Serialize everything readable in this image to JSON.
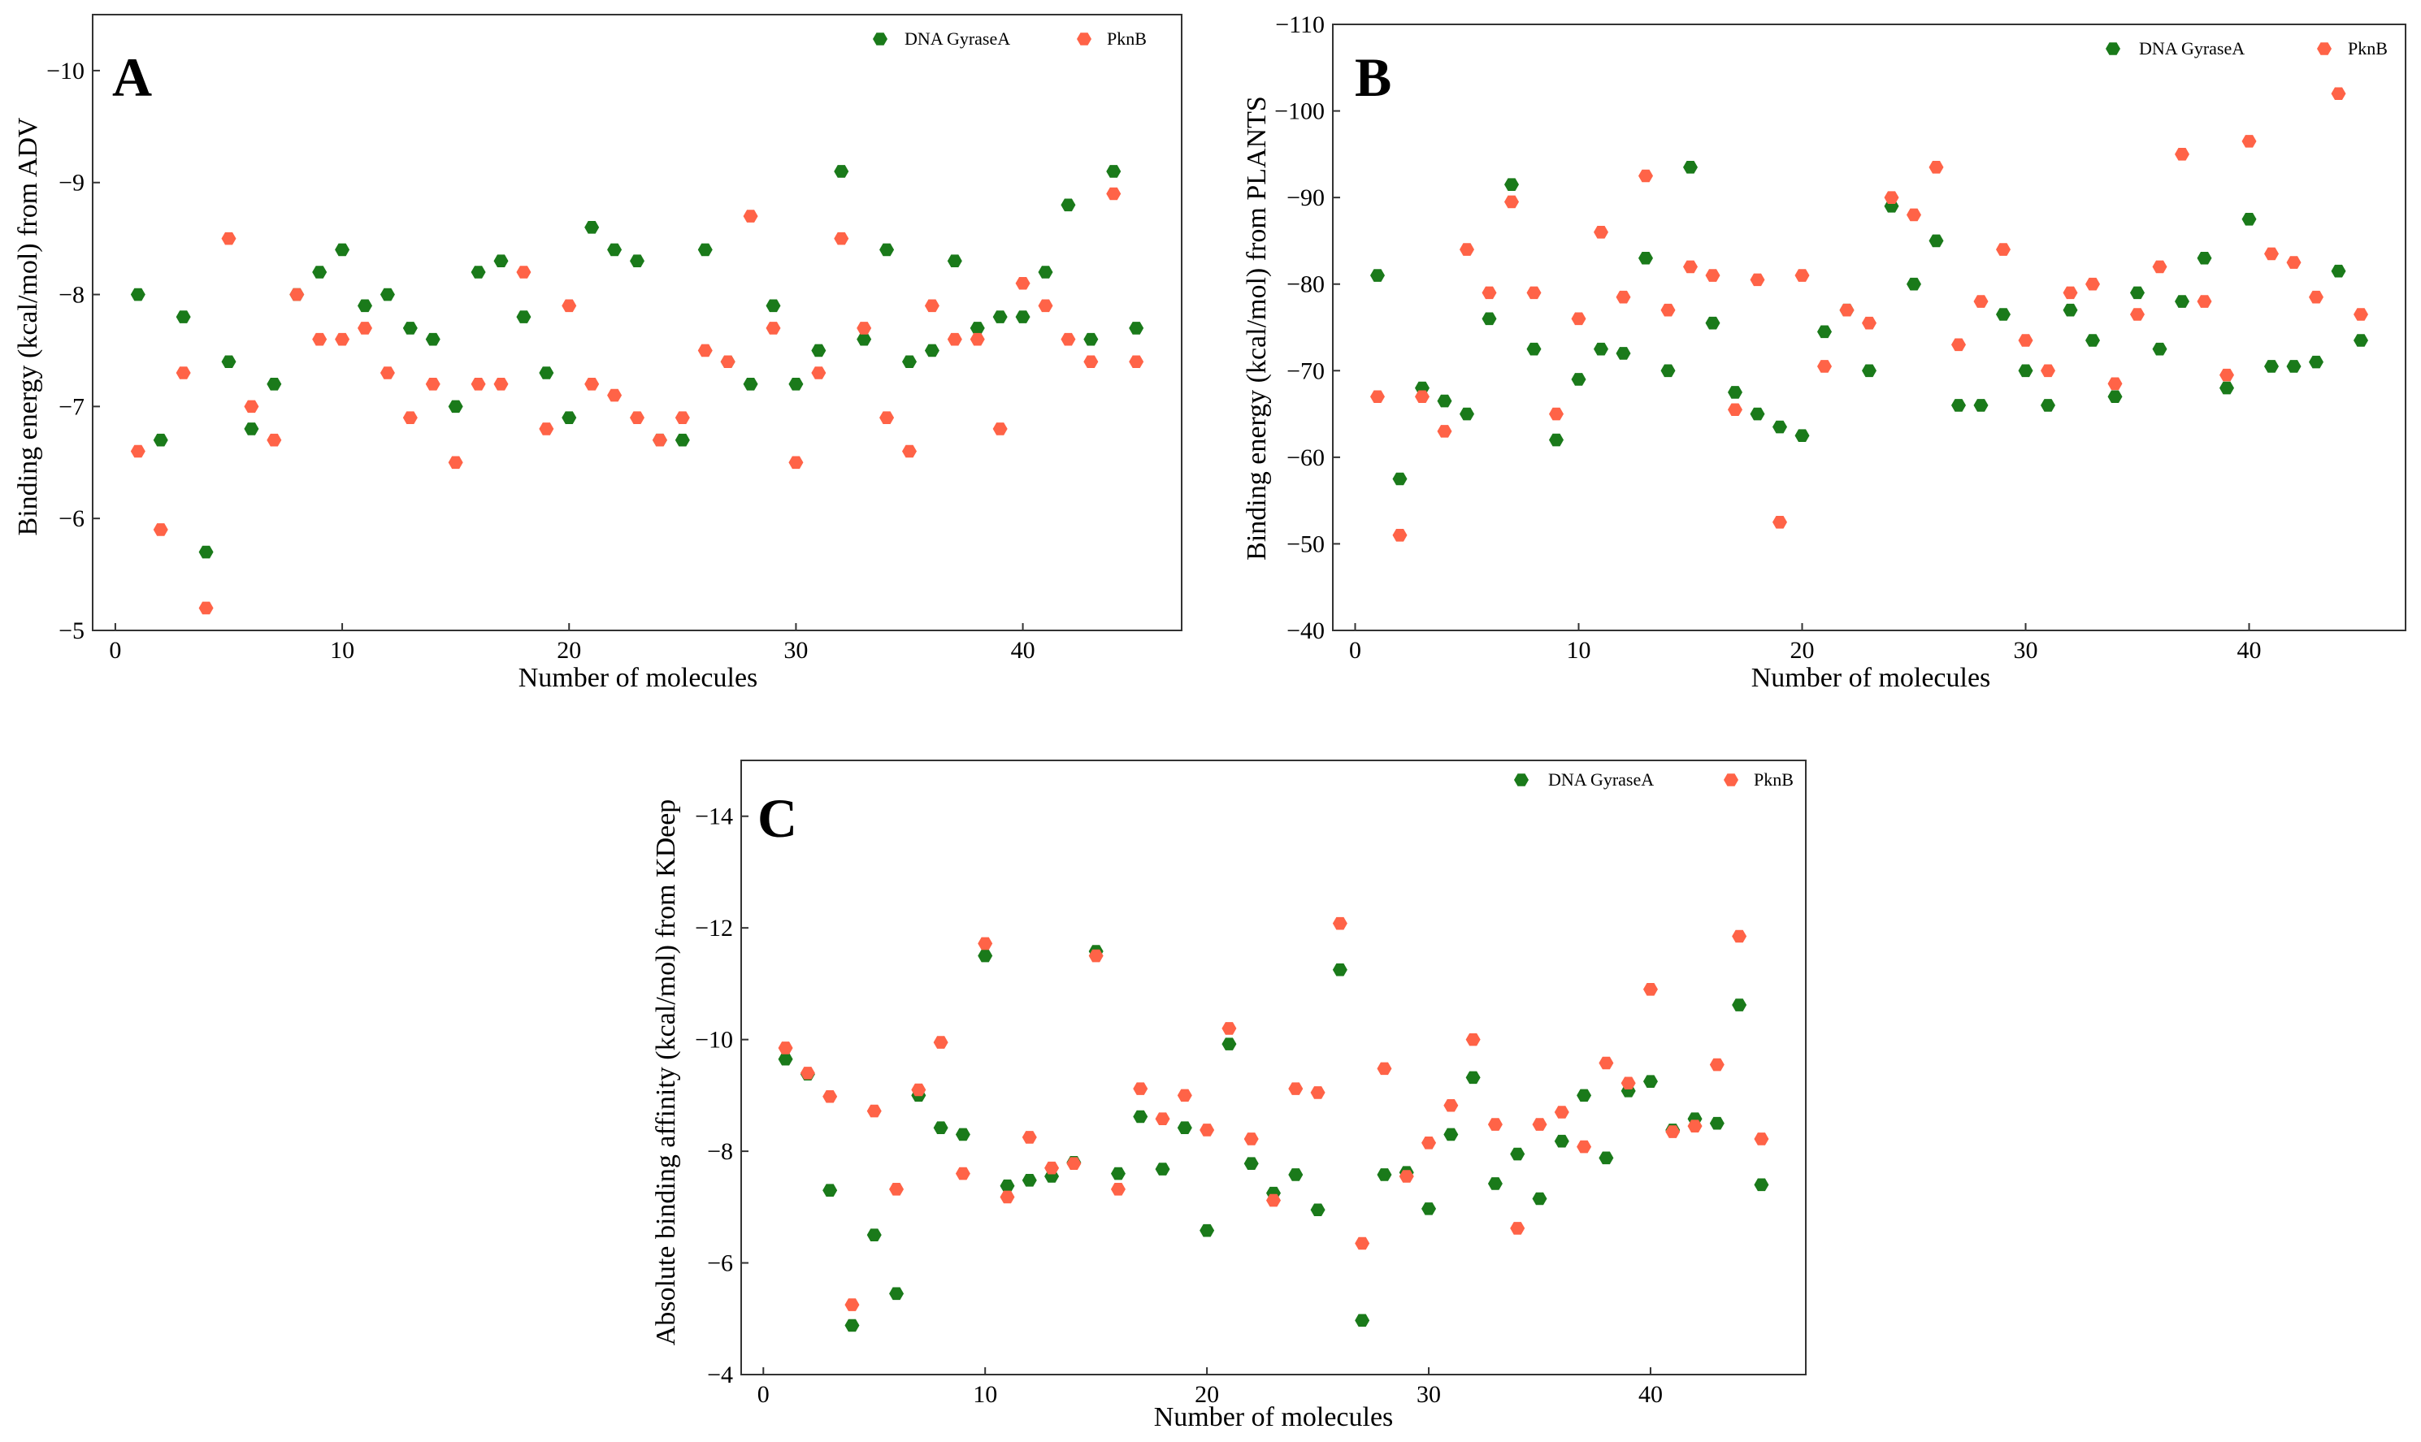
{
  "colors": {
    "series_green": "#1a7a1a",
    "series_orange": "#ff6347"
  },
  "chart_data": [
    {
      "type": "scatter",
      "panel_label": "A",
      "xlabel": "Number of molecules",
      "ylabel": "Binding energy (kcal/mol) from ADV",
      "xlim": [
        -1,
        47
      ],
      "ylim": [
        -5,
        -10.5
      ],
      "y_inverted": true,
      "xticks": [
        0,
        10,
        20,
        30,
        40
      ],
      "yticks": [
        -10,
        -9,
        -8,
        -7,
        -6,
        -5
      ],
      "tick_labels_x": [
        "0",
        "10",
        "20",
        "30",
        "40"
      ],
      "tick_labels_y": [
        "−10",
        "−9",
        "−8",
        "−7",
        "−6",
        "−5"
      ],
      "grid": false,
      "legend_position": "top-right",
      "series": [
        {
          "name": "DNA GyraseA",
          "color": "#1a7a1a",
          "x": [
            1,
            2,
            3,
            4,
            5,
            6,
            7,
            8,
            9,
            10,
            11,
            12,
            13,
            14,
            15,
            16,
            17,
            18,
            19,
            20,
            21,
            22,
            23,
            24,
            25,
            26,
            27,
            28,
            29,
            30,
            31,
            32,
            33,
            34,
            35,
            36,
            37,
            38,
            39,
            40,
            41,
            42,
            43,
            44,
            45
          ],
          "y": [
            -8.0,
            -6.7,
            -7.8,
            -5.7,
            -7.4,
            -6.8,
            -7.2,
            -8.0,
            -8.2,
            -8.4,
            -7.9,
            -8.0,
            -7.7,
            -7.6,
            -7.0,
            -8.2,
            -8.3,
            -7.8,
            -7.3,
            -6.9,
            -8.6,
            -8.4,
            -8.3,
            -6.7,
            -6.7,
            -8.4,
            -7.4,
            -7.2,
            -7.9,
            -7.2,
            -7.5,
            -9.1,
            -7.6,
            -8.4,
            -7.4,
            -7.5,
            -8.3,
            -7.7,
            -7.8,
            -7.8,
            -8.2,
            -8.8,
            -7.6,
            -9.1,
            -7.7
          ]
        },
        {
          "name": "PknB",
          "color": "#ff6347",
          "x": [
            1,
            2,
            3,
            4,
            5,
            6,
            7,
            8,
            9,
            10,
            11,
            12,
            13,
            14,
            15,
            16,
            17,
            18,
            19,
            20,
            21,
            22,
            23,
            24,
            25,
            26,
            27,
            28,
            29,
            30,
            31,
            32,
            33,
            34,
            35,
            36,
            37,
            38,
            39,
            40,
            41,
            42,
            43,
            44,
            45
          ],
          "y": [
            -6.6,
            -5.9,
            -7.3,
            -5.2,
            -8.5,
            -7.0,
            -6.7,
            -8.0,
            -7.6,
            -7.6,
            -7.7,
            -7.3,
            -6.9,
            -7.2,
            -6.5,
            -7.2,
            -7.2,
            -8.2,
            -6.8,
            -7.9,
            -7.2,
            -7.1,
            -6.9,
            -6.7,
            -6.9,
            -7.5,
            -7.4,
            -8.7,
            -7.7,
            -6.5,
            -7.3,
            -8.5,
            -7.7,
            -6.9,
            -6.6,
            -7.9,
            -7.6,
            -7.6,
            -6.8,
            -8.1,
            -7.9,
            -7.6,
            -7.4,
            -8.9,
            -7.4
          ]
        }
      ]
    },
    {
      "type": "scatter",
      "panel_label": "B",
      "xlabel": "Number of molecules",
      "ylabel": "Binding energy (kcal/mol) from PLANTS",
      "xlim": [
        -1,
        47
      ],
      "ylim": [
        -40,
        -110
      ],
      "y_inverted": true,
      "xticks": [
        0,
        10,
        20,
        30,
        40
      ],
      "yticks": [
        -110,
        -100,
        -90,
        -80,
        -70,
        -60,
        -50,
        -40
      ],
      "tick_labels_x": [
        "0",
        "10",
        "20",
        "30",
        "40"
      ],
      "tick_labels_y": [
        "−110",
        "−100",
        "−90",
        "−80",
        "−70",
        "−60",
        "−50",
        "−40"
      ],
      "grid": false,
      "legend_position": "top-right",
      "series": [
        {
          "name": "DNA GyraseA",
          "color": "#1a7a1a",
          "x": [
            1,
            2,
            3,
            4,
            5,
            6,
            7,
            8,
            9,
            10,
            11,
            12,
            13,
            14,
            15,
            16,
            17,
            18,
            19,
            20,
            21,
            22,
            23,
            24,
            25,
            26,
            27,
            28,
            29,
            30,
            31,
            32,
            33,
            34,
            35,
            36,
            37,
            38,
            39,
            40,
            41,
            42,
            43,
            44,
            45
          ],
          "y": [
            -81,
            -57.5,
            -68,
            -66.5,
            -65,
            -76,
            -91.5,
            -72.5,
            -62,
            -69,
            -72.5,
            -72,
            -83,
            -70,
            -93.5,
            -75.5,
            -67.5,
            -65,
            -63.5,
            -62.5,
            -74.5,
            -77,
            -70,
            -89,
            -80,
            -85,
            -66,
            -66,
            -76.5,
            -70,
            -66,
            -77,
            -73.5,
            -67,
            -79,
            -72.5,
            -78,
            -83,
            -68,
            -87.5,
            -70.5,
            -70.5,
            -71,
            -81.5,
            -73.5
          ]
        },
        {
          "name": "PknB",
          "color": "#ff6347",
          "x": [
            1,
            2,
            3,
            4,
            5,
            6,
            7,
            8,
            9,
            10,
            11,
            12,
            13,
            14,
            15,
            16,
            17,
            18,
            19,
            20,
            21,
            22,
            23,
            24,
            25,
            26,
            27,
            28,
            29,
            30,
            31,
            32,
            33,
            34,
            35,
            36,
            37,
            38,
            39,
            40,
            41,
            42,
            43,
            44,
            45
          ],
          "y": [
            -67,
            -51,
            -67,
            -63,
            -84,
            -79,
            -89.5,
            -79,
            -65,
            -76,
            -86,
            -78.5,
            -92.5,
            -77,
            -82,
            -81,
            -65.5,
            -80.5,
            -52.5,
            -81,
            -70.5,
            -77,
            -75.5,
            -90,
            -88,
            -93.5,
            -73,
            -78,
            -84,
            -73.5,
            -70,
            -79,
            -80,
            -68.5,
            -76.5,
            -82,
            -95,
            -78,
            -69.5,
            -96.5,
            -83.5,
            -82.5,
            -78.5,
            -102,
            -76.5
          ]
        }
      ]
    },
    {
      "type": "scatter",
      "panel_label": "C",
      "xlabel": "Number of molecules",
      "ylabel": "Absolute binding affinity (kcal/mol) from KDeep",
      "xlim": [
        -1,
        47
      ],
      "ylim": [
        -4,
        -15
      ],
      "y_inverted": true,
      "xticks": [
        0,
        10,
        20,
        30,
        40
      ],
      "yticks": [
        -14,
        -12,
        -10,
        -8,
        -6,
        -4
      ],
      "tick_labels_x": [
        "0",
        "10",
        "20",
        "30",
        "40"
      ],
      "tick_labels_y": [
        "−14",
        "−12",
        "−10",
        "−8",
        "−6",
        "−4"
      ],
      "grid": false,
      "legend_position": "top-right",
      "series": [
        {
          "name": "DNA GyraseA",
          "color": "#1a7a1a",
          "x": [
            1,
            2,
            3,
            4,
            5,
            6,
            7,
            8,
            9,
            10,
            11,
            12,
            13,
            14,
            15,
            16,
            17,
            18,
            19,
            20,
            21,
            22,
            23,
            24,
            25,
            26,
            27,
            28,
            29,
            30,
            31,
            32,
            33,
            34,
            35,
            36,
            37,
            38,
            39,
            40,
            41,
            42,
            43,
            44,
            45
          ],
          "y": [
            -9.65,
            -9.38,
            -7.3,
            -4.88,
            -6.5,
            -5.45,
            -9.0,
            -8.42,
            -8.3,
            -11.5,
            -7.38,
            -7.48,
            -7.55,
            -7.8,
            -11.58,
            -7.6,
            -8.62,
            -7.68,
            -8.42,
            -6.58,
            -9.92,
            -7.78,
            -7.25,
            -7.58,
            -6.95,
            -11.25,
            -4.97,
            -7.58,
            -7.62,
            -6.97,
            -8.3,
            -9.32,
            -7.42,
            -7.95,
            -7.15,
            -8.18,
            -9.0,
            -7.88,
            -9.08,
            -9.25,
            -8.38,
            -8.58,
            -8.5,
            -10.62,
            -7.4
          ]
        },
        {
          "name": "PknB",
          "color": "#ff6347",
          "x": [
            1,
            2,
            3,
            4,
            5,
            6,
            7,
            8,
            9,
            10,
            11,
            12,
            13,
            14,
            15,
            16,
            17,
            18,
            19,
            20,
            21,
            22,
            23,
            24,
            25,
            26,
            27,
            28,
            29,
            30,
            31,
            32,
            33,
            34,
            35,
            36,
            37,
            38,
            39,
            40,
            41,
            42,
            43,
            44,
            45
          ],
          "y": [
            -9.85,
            -9.4,
            -8.98,
            -5.25,
            -8.72,
            -7.32,
            -9.1,
            -9.95,
            -7.6,
            -11.72,
            -7.18,
            -8.25,
            -7.7,
            -7.78,
            -11.5,
            -7.32,
            -9.12,
            -8.58,
            -9.0,
            -8.38,
            -10.2,
            -8.22,
            -7.12,
            -9.12,
            -9.05,
            -12.08,
            -6.35,
            -9.48,
            -7.55,
            -8.15,
            -8.82,
            -10.0,
            -8.48,
            -6.62,
            -8.48,
            -8.7,
            -8.08,
            -9.58,
            -9.22,
            -10.9,
            -8.35,
            -8.45,
            -9.55,
            -11.85,
            -8.22
          ]
        }
      ]
    }
  ]
}
